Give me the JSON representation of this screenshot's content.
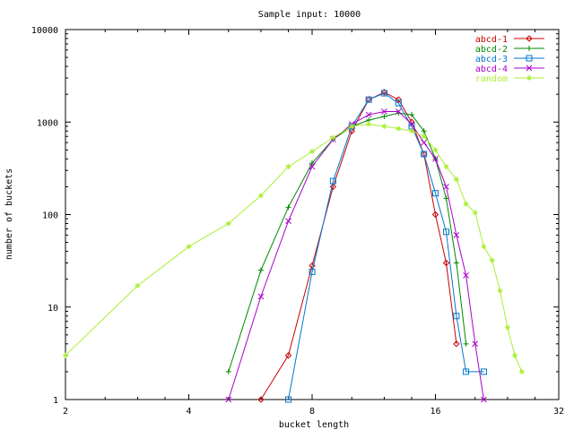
{
  "chart_data": {
    "type": "line",
    "title": "Sample input: 10000",
    "xlabel": "bucket length",
    "ylabel": "number of buckets",
    "x_scale": "log2",
    "y_scale": "log10",
    "xlim": [
      2,
      32
    ],
    "ylim": [
      1,
      10000
    ],
    "x_ticks": [
      "2",
      "4",
      "8",
      "16",
      "32"
    ],
    "y_ticks": [
      "1",
      "10",
      "100",
      "1000",
      "10000"
    ],
    "grid": false,
    "legend_position": "top-right",
    "series": [
      {
        "name": "abcd-1",
        "color": "#cc0000",
        "marker": "diamond",
        "points": [
          [
            6,
            1
          ],
          [
            7,
            3
          ],
          [
            8,
            28
          ],
          [
            9,
            200
          ],
          [
            10,
            800
          ],
          [
            11,
            1750
          ],
          [
            12,
            2100
          ],
          [
            13,
            1750
          ],
          [
            14,
            1000
          ],
          [
            15,
            450
          ],
          [
            16,
            100
          ],
          [
            17,
            30
          ],
          [
            18,
            4
          ]
        ]
      },
      {
        "name": "abcd-2",
        "color": "#008800",
        "marker": "plus",
        "points": [
          [
            5,
            2
          ],
          [
            6,
            25
          ],
          [
            7,
            120
          ],
          [
            8,
            360
          ],
          [
            9,
            650
          ],
          [
            10,
            900
          ],
          [
            11,
            1050
          ],
          [
            12,
            1150
          ],
          [
            13,
            1250
          ],
          [
            14,
            1200
          ],
          [
            15,
            800
          ],
          [
            16,
            400
          ],
          [
            17,
            150
          ],
          [
            18,
            30
          ],
          [
            19,
            4
          ]
        ]
      },
      {
        "name": "abcd-3",
        "color": "#0077cc",
        "marker": "square",
        "points": [
          [
            7,
            1
          ],
          [
            8,
            24
          ],
          [
            9,
            230
          ],
          [
            10,
            900
          ],
          [
            11,
            1750
          ],
          [
            12,
            2050
          ],
          [
            13,
            1600
          ],
          [
            14,
            900
          ],
          [
            15,
            450
          ],
          [
            16,
            170
          ],
          [
            17,
            65
          ],
          [
            18,
            8
          ],
          [
            19,
            2
          ],
          [
            21,
            2
          ]
        ]
      },
      {
        "name": "abcd-4",
        "color": "#aa00cc",
        "marker": "cross",
        "points": [
          [
            5,
            1
          ],
          [
            6,
            13
          ],
          [
            7,
            85
          ],
          [
            8,
            330
          ],
          [
            9,
            650
          ],
          [
            10,
            950
          ],
          [
            11,
            1200
          ],
          [
            12,
            1300
          ],
          [
            13,
            1300
          ],
          [
            14,
            950
          ],
          [
            15,
            600
          ],
          [
            16,
            400
          ],
          [
            17,
            200
          ],
          [
            18,
            60
          ],
          [
            19,
            22
          ],
          [
            20,
            4
          ],
          [
            21,
            1
          ]
        ]
      },
      {
        "name": "random",
        "color": "#aaee33",
        "marker": "star",
        "points": [
          [
            2,
            3
          ],
          [
            3,
            17
          ],
          [
            4,
            45
          ],
          [
            5,
            80
          ],
          [
            6,
            160
          ],
          [
            7,
            330
          ],
          [
            8,
            480
          ],
          [
            9,
            680
          ],
          [
            10,
            900
          ],
          [
            11,
            950
          ],
          [
            12,
            900
          ],
          [
            13,
            850
          ],
          [
            14,
            800
          ],
          [
            15,
            700
          ],
          [
            16,
            500
          ],
          [
            17,
            330
          ],
          [
            18,
            240
          ],
          [
            19,
            130
          ],
          [
            20,
            105
          ],
          [
            21,
            45
          ],
          [
            22,
            32
          ],
          [
            23,
            15
          ],
          [
            24,
            6
          ],
          [
            25,
            3
          ],
          [
            26,
            2
          ]
        ]
      }
    ]
  }
}
